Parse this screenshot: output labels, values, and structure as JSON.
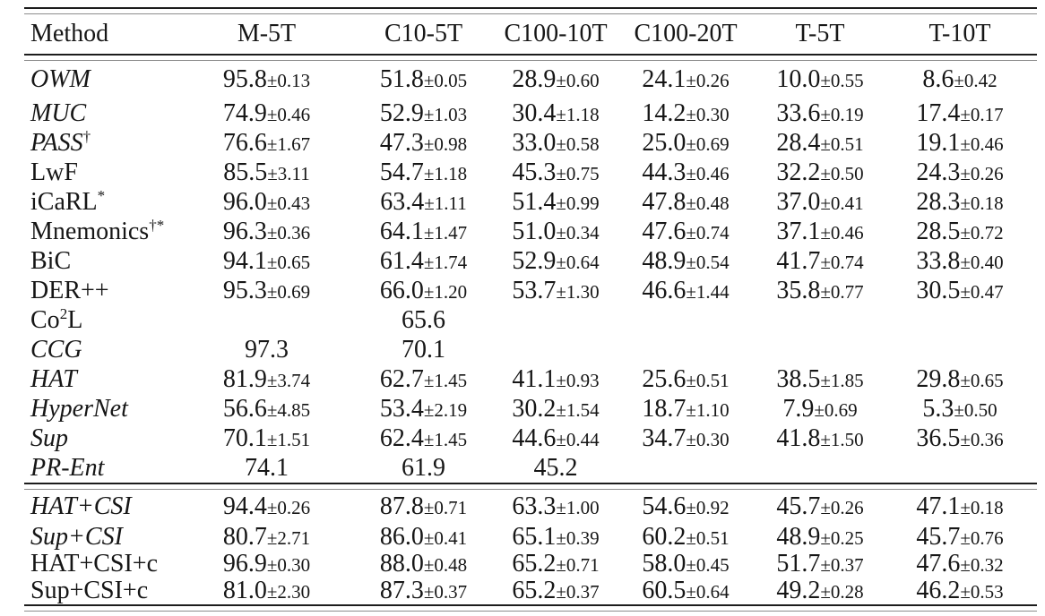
{
  "table": {
    "columns": [
      "Method",
      "M-5T",
      "C10-5T",
      "C100-10T",
      "C100-20T",
      "T-5T",
      "T-10T"
    ],
    "groups": [
      {
        "rows": [
          {
            "pre": "OWM",
            "sup": "",
            "post": "",
            "italic": true,
            "cells": [
              {
                "m": "95.8",
                "s": "±0.13"
              },
              {
                "m": "51.8",
                "s": "±0.05"
              },
              {
                "m": "28.9",
                "s": "±0.60"
              },
              {
                "m": "24.1",
                "s": "±0.26"
              },
              {
                "m": "10.0",
                "s": "±0.55"
              },
              {
                "m": "8.6",
                "s": "±0.42"
              }
            ]
          },
          {
            "pre": "MUC",
            "sup": "",
            "post": "",
            "italic": true,
            "cells": [
              {
                "m": "74.9",
                "s": "±0.46"
              },
              {
                "m": "52.9",
                "s": "±1.03"
              },
              {
                "m": "30.4",
                "s": "±1.18"
              },
              {
                "m": "14.2",
                "s": "±0.30"
              },
              {
                "m": "33.6",
                "s": "±0.19"
              },
              {
                "m": "17.4",
                "s": "±0.17"
              }
            ]
          },
          {
            "pre": "PASS",
            "sup": "†",
            "post": "",
            "italic": true,
            "cells": [
              {
                "m": "76.6",
                "s": "±1.67"
              },
              {
                "m": "47.3",
                "s": "±0.98"
              },
              {
                "m": "33.0",
                "s": "±0.58"
              },
              {
                "m": "25.0",
                "s": "±0.69"
              },
              {
                "m": "28.4",
                "s": "±0.51"
              },
              {
                "m": "19.1",
                "s": "±0.46"
              }
            ]
          },
          {
            "pre": "LwF",
            "sup": "",
            "post": "",
            "italic": false,
            "cells": [
              {
                "m": "85.5",
                "s": "±3.11"
              },
              {
                "m": "54.7",
                "s": "±1.18"
              },
              {
                "m": "45.3",
                "s": "±0.75"
              },
              {
                "m": "44.3",
                "s": "±0.46"
              },
              {
                "m": "32.2",
                "s": "±0.50"
              },
              {
                "m": "24.3",
                "s": "±0.26"
              }
            ]
          },
          {
            "pre": "iCaRL",
            "sup": "*",
            "post": "",
            "italic": false,
            "cells": [
              {
                "m": "96.0",
                "s": "±0.43"
              },
              {
                "m": "63.4",
                "s": "±1.11"
              },
              {
                "m": "51.4",
                "s": "±0.99"
              },
              {
                "m": "47.8",
                "s": "±0.48"
              },
              {
                "m": "37.0",
                "s": "±0.41"
              },
              {
                "m": "28.3",
                "s": "±0.18"
              }
            ]
          },
          {
            "pre": "Mnemonics",
            "sup": "†*",
            "post": "",
            "italic": false,
            "cells": [
              {
                "m": "96.3",
                "s": "±0.36"
              },
              {
                "m": "64.1",
                "s": "±1.47"
              },
              {
                "m": "51.0",
                "s": "±0.34"
              },
              {
                "m": "47.6",
                "s": "±0.74"
              },
              {
                "m": "37.1",
                "s": "±0.46"
              },
              {
                "m": "28.5",
                "s": "±0.72"
              }
            ]
          },
          {
            "pre": "BiC",
            "sup": "",
            "post": "",
            "italic": false,
            "cells": [
              {
                "m": "94.1",
                "s": "±0.65"
              },
              {
                "m": "61.4",
                "s": "±1.74"
              },
              {
                "m": "52.9",
                "s": "±0.64"
              },
              {
                "m": "48.9",
                "s": "±0.54"
              },
              {
                "m": "41.7",
                "s": "±0.74"
              },
              {
                "m": "33.8",
                "s": "±0.40"
              }
            ]
          },
          {
            "pre": "DER++",
            "sup": "",
            "post": "",
            "italic": false,
            "cells": [
              {
                "m": "95.3",
                "s": "±0.69"
              },
              {
                "m": "66.0",
                "s": "±1.20"
              },
              {
                "m": "53.7",
                "s": "±1.30"
              },
              {
                "m": "46.6",
                "s": "±1.44"
              },
              {
                "m": "35.8",
                "s": "±0.77"
              },
              {
                "m": "30.5",
                "s": "±0.47"
              }
            ]
          },
          {
            "pre": "Co",
            "sup": "2",
            "post": "L",
            "italic": false,
            "cells": [
              {
                "m": "",
                "s": ""
              },
              {
                "m": "65.6",
                "s": ""
              },
              {
                "m": "",
                "s": ""
              },
              {
                "m": "",
                "s": ""
              },
              {
                "m": "",
                "s": ""
              },
              {
                "m": "",
                "s": ""
              }
            ]
          },
          {
            "pre": "CCG",
            "sup": "",
            "post": "",
            "italic": true,
            "cells": [
              {
                "m": "97.3",
                "s": ""
              },
              {
                "m": "70.1",
                "s": ""
              },
              {
                "m": "",
                "s": ""
              },
              {
                "m": "",
                "s": ""
              },
              {
                "m": "",
                "s": ""
              },
              {
                "m": "",
                "s": ""
              }
            ]
          },
          {
            "pre": "HAT",
            "sup": "",
            "post": "",
            "italic": true,
            "cells": [
              {
                "m": "81.9",
                "s": "±3.74"
              },
              {
                "m": "62.7",
                "s": "±1.45"
              },
              {
                "m": "41.1",
                "s": "±0.93"
              },
              {
                "m": "25.6",
                "s": "±0.51"
              },
              {
                "m": "38.5",
                "s": "±1.85"
              },
              {
                "m": "29.8",
                "s": "±0.65"
              }
            ]
          },
          {
            "pre": "HyperNet",
            "sup": "",
            "post": "",
            "italic": true,
            "cells": [
              {
                "m": "56.6",
                "s": "±4.85"
              },
              {
                "m": "53.4",
                "s": "±2.19"
              },
              {
                "m": "30.2",
                "s": "±1.54"
              },
              {
                "m": "18.7",
                "s": "±1.10"
              },
              {
                "m": "7.9",
                "s": "±0.69"
              },
              {
                "m": "5.3",
                "s": "±0.50"
              }
            ]
          },
          {
            "pre": "Sup",
            "sup": "",
            "post": "",
            "italic": true,
            "cells": [
              {
                "m": "70.1",
                "s": "±1.51"
              },
              {
                "m": "62.4",
                "s": "±1.45"
              },
              {
                "m": "44.6",
                "s": "±0.44"
              },
              {
                "m": "34.7",
                "s": "±0.30"
              },
              {
                "m": "41.8",
                "s": "±1.50"
              },
              {
                "m": "36.5",
                "s": "±0.36"
              }
            ]
          },
          {
            "pre": "PR-Ent",
            "sup": "",
            "post": "",
            "italic": true,
            "cells": [
              {
                "m": "74.1",
                "s": ""
              },
              {
                "m": "61.9",
                "s": ""
              },
              {
                "m": "45.2",
                "s": ""
              },
              {
                "m": "",
                "s": ""
              },
              {
                "m": "",
                "s": ""
              },
              {
                "m": "",
                "s": ""
              }
            ]
          }
        ]
      },
      {
        "rows": [
          {
            "pre": "HAT+CSI",
            "sup": "",
            "post": "",
            "italic": true,
            "cells": [
              {
                "m": "94.4",
                "s": "±0.26"
              },
              {
                "m": "87.8",
                "s": "±0.71"
              },
              {
                "m": "63.3",
                "s": "±1.00"
              },
              {
                "m": "54.6",
                "s": "±0.92"
              },
              {
                "m": "45.7",
                "s": "±0.26"
              },
              {
                "m": "47.1",
                "s": "±0.18"
              }
            ]
          },
          {
            "pre": "Sup+CSI",
            "sup": "",
            "post": "",
            "italic": true,
            "cells": [
              {
                "m": "80.7",
                "s": "±2.71"
              },
              {
                "m": "86.0",
                "s": "±0.41"
              },
              {
                "m": "65.1",
                "s": "±0.39"
              },
              {
                "m": "60.2",
                "s": "±0.51"
              },
              {
                "m": "48.9",
                "s": "±0.25"
              },
              {
                "m": "45.7",
                "s": "±0.76"
              }
            ]
          },
          {
            "pre": "HAT+CSI+c",
            "sup": "",
            "post": "",
            "italic": false,
            "cells": [
              {
                "m": "96.9",
                "s": "±0.30"
              },
              {
                "m": "88.0",
                "s": "±0.48"
              },
              {
                "m": "65.2",
                "s": "±0.71"
              },
              {
                "m": "58.0",
                "s": "±0.45"
              },
              {
                "m": "51.7",
                "s": "±0.37"
              },
              {
                "m": "47.6",
                "s": "±0.32"
              }
            ]
          },
          {
            "pre": "Sup+CSI+c",
            "sup": "",
            "post": "",
            "italic": false,
            "cells": [
              {
                "m": "81.0",
                "s": "±2.30"
              },
              {
                "m": "87.3",
                "s": "±0.37"
              },
              {
                "m": "65.2",
                "s": "±0.37"
              },
              {
                "m": "60.5",
                "s": "±0.64"
              },
              {
                "m": "49.2",
                "s": "±0.28"
              },
              {
                "m": "46.2",
                "s": "±0.53"
              }
            ]
          }
        ]
      }
    ]
  }
}
